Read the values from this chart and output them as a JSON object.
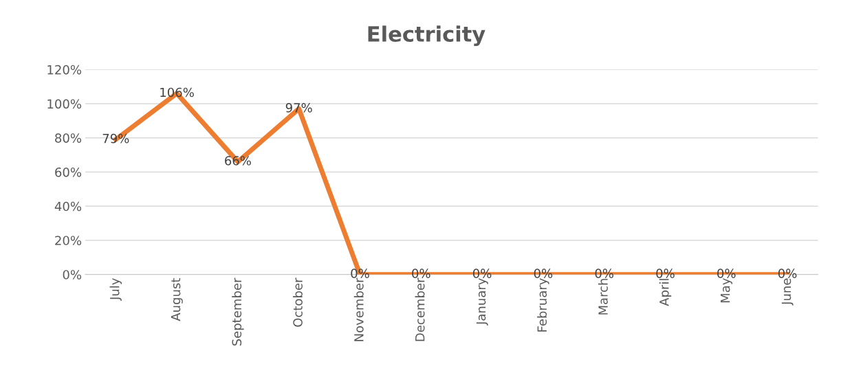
{
  "chart_data": {
    "type": "line",
    "title": "Electricity",
    "categories": [
      "July",
      "August",
      "September",
      "October",
      "November",
      "December",
      "January",
      "February",
      "March",
      "April",
      "May",
      "June"
    ],
    "series": [
      {
        "color": "#ed7d31",
        "values": [
          79,
          106,
          66,
          97,
          0,
          0,
          0,
          0,
          0,
          0,
          0,
          0
        ],
        "value_labels": [
          "79%",
          "106%",
          "66%",
          "97%",
          "0%",
          "0%",
          "0%",
          "0%",
          "0%",
          "0%",
          "0%",
          "0%"
        ]
      }
    ],
    "ylim": [
      0,
      120
    ],
    "yticks": [
      {
        "value": 0,
        "label": "0%"
      },
      {
        "value": 20,
        "label": "20%"
      },
      {
        "value": 40,
        "label": "40%"
      },
      {
        "value": 60,
        "label": "60%"
      },
      {
        "value": 80,
        "label": "80%"
      },
      {
        "value": 100,
        "label": "100%"
      },
      {
        "value": 120,
        "label": "120%"
      }
    ],
    "grid": "y",
    "legend": false,
    "marker": "none",
    "line_style": "solid"
  }
}
